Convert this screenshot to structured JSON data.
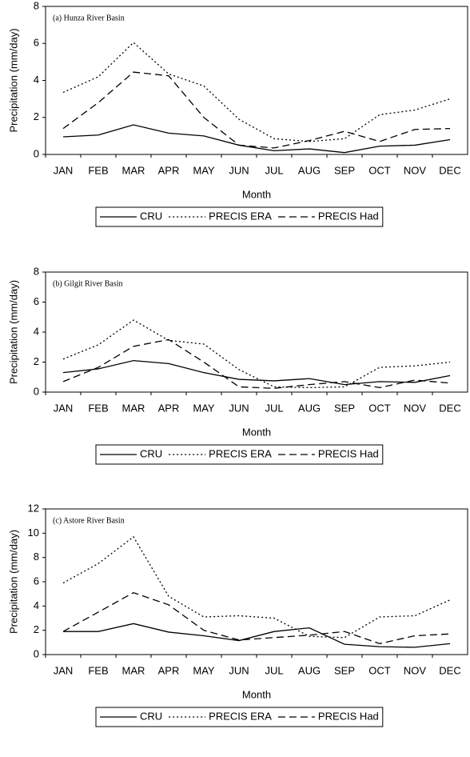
{
  "chart_data": [
    {
      "type": "line",
      "title": "(a) Hunza River Basin",
      "x_label": "Month",
      "y_label": "Precipitation (mm/day)",
      "categories": [
        "JAN",
        "FEB",
        "MAR",
        "APR",
        "MAY",
        "JUN",
        "JUL",
        "AUG",
        "SEP",
        "OCT",
        "NOV",
        "DEC"
      ],
      "ylim": [
        0,
        8
      ],
      "yticks": [
        0,
        2,
        4,
        6,
        8
      ],
      "legend": "bottom",
      "series": [
        {
          "name": "CRU",
          "color": "#000000",
          "line_style": "solid",
          "values": [
            0.95,
            1.05,
            1.6,
            1.15,
            1.0,
            0.5,
            0.2,
            0.3,
            0.1,
            0.45,
            0.5,
            0.8
          ]
        },
        {
          "name": "PRECIS ERA",
          "color": "#000000",
          "line_style": "dotted",
          "values": [
            3.35,
            4.2,
            6.05,
            4.35,
            3.7,
            1.9,
            0.85,
            0.7,
            0.85,
            2.15,
            2.4,
            3.0
          ]
        },
        {
          "name": "PRECIS Had",
          "color": "#000000",
          "line_style": "dashed",
          "values": [
            1.4,
            2.8,
            4.45,
            4.25,
            2.0,
            0.5,
            0.35,
            0.75,
            1.25,
            0.7,
            1.35,
            1.4
          ]
        }
      ]
    },
    {
      "type": "line",
      "title": "(b) Gilgit River Basin",
      "x_label": "Month",
      "y_label": "Precipitation (mm/day)",
      "categories": [
        "JAN",
        "FEB",
        "MAR",
        "APR",
        "MAY",
        "JUN",
        "JUL",
        "AUG",
        "SEP",
        "OCT",
        "NOV",
        "DEC"
      ],
      "ylim": [
        0,
        8
      ],
      "yticks": [
        0,
        2,
        4,
        6,
        8
      ],
      "legend": "bottom",
      "series": [
        {
          "name": "CRU",
          "color": "#000000",
          "line_style": "solid",
          "values": [
            1.3,
            1.55,
            2.1,
            1.9,
            1.3,
            0.85,
            0.75,
            0.9,
            0.5,
            0.7,
            0.65,
            1.1
          ]
        },
        {
          "name": "PRECIS ERA",
          "color": "#000000",
          "line_style": "dotted",
          "values": [
            2.2,
            3.15,
            4.8,
            3.45,
            3.2,
            1.5,
            0.35,
            0.3,
            0.35,
            1.65,
            1.75,
            2.0
          ]
        },
        {
          "name": "PRECIS Had",
          "color": "#000000",
          "line_style": "dashed",
          "values": [
            0.7,
            1.65,
            3.05,
            3.5,
            2.0,
            0.35,
            0.25,
            0.5,
            0.7,
            0.3,
            0.8,
            0.6
          ]
        }
      ]
    },
    {
      "type": "line",
      "title": "(c) Astore River Basin",
      "x_label": "Month",
      "y_label": "Precipitation (mm/day)",
      "categories": [
        "JAN",
        "FEB",
        "MAR",
        "APR",
        "MAY",
        "JUN",
        "JUL",
        "AUG",
        "SEP",
        "OCT",
        "NOV",
        "DEC"
      ],
      "ylim": [
        0,
        12
      ],
      "yticks": [
        0,
        2,
        4,
        6,
        8,
        10,
        12
      ],
      "legend": "bottom",
      "series": [
        {
          "name": "CRU",
          "color": "#000000",
          "line_style": "solid",
          "values": [
            1.9,
            1.9,
            2.55,
            1.85,
            1.55,
            1.15,
            1.9,
            2.2,
            0.85,
            0.65,
            0.6,
            0.9
          ]
        },
        {
          "name": "PRECIS ERA",
          "color": "#000000",
          "line_style": "dotted",
          "values": [
            5.9,
            7.5,
            9.7,
            4.8,
            3.1,
            3.2,
            3.0,
            1.5,
            1.4,
            3.1,
            3.2,
            4.5
          ]
        },
        {
          "name": "PRECIS Had",
          "color": "#000000",
          "line_style": "dashed",
          "values": [
            1.9,
            3.5,
            5.1,
            4.1,
            2.0,
            1.2,
            1.4,
            1.6,
            1.9,
            0.9,
            1.55,
            1.7
          ]
        }
      ]
    }
  ]
}
